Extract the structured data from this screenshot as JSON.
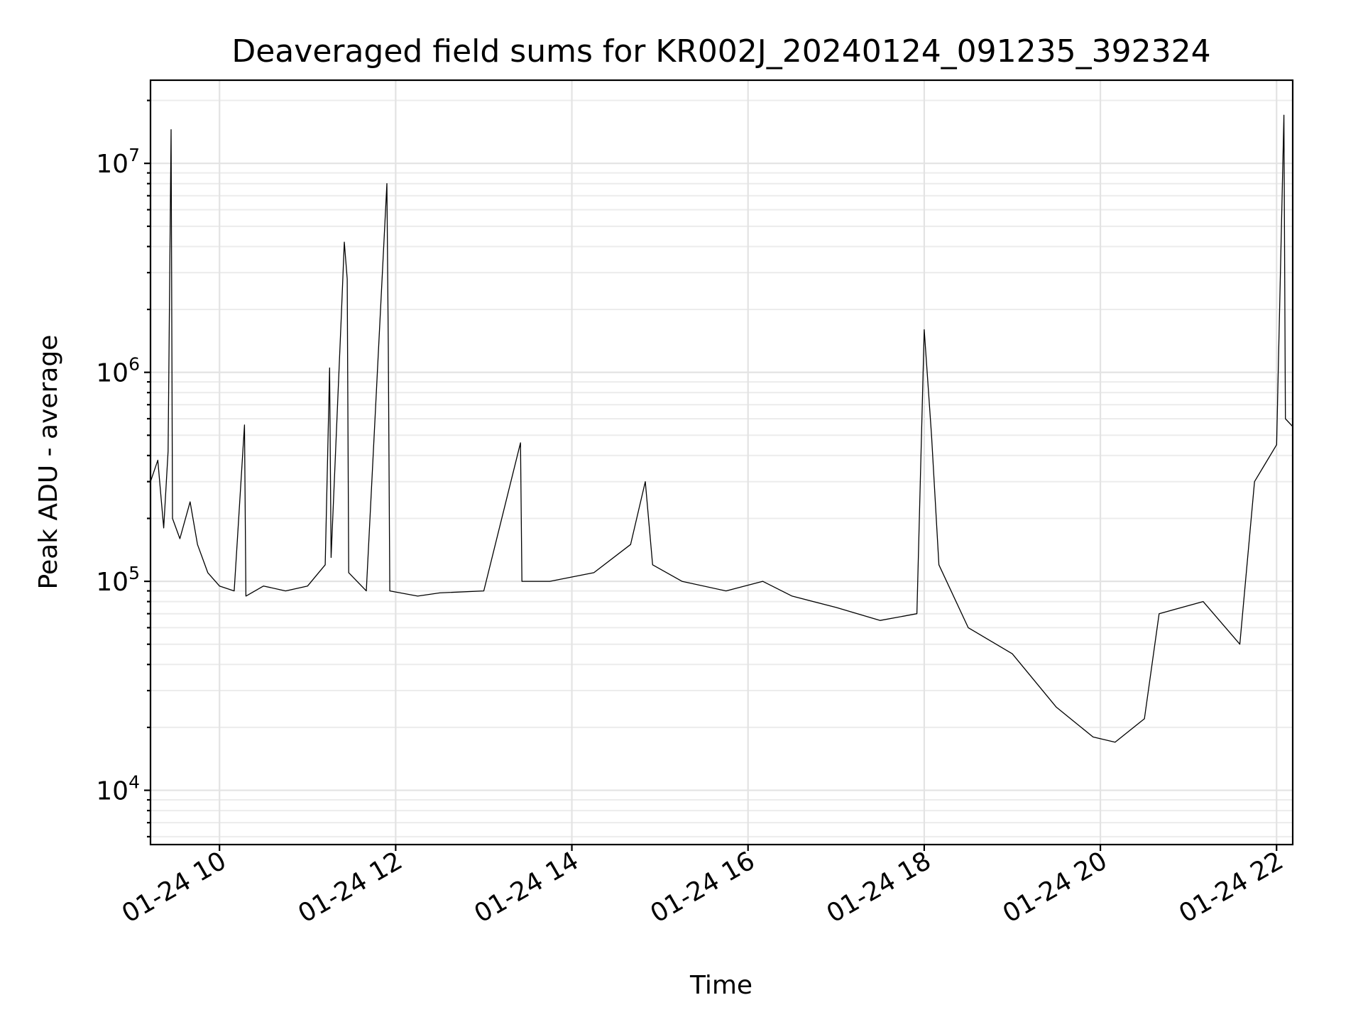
{
  "chart_data": {
    "type": "line",
    "title": "Deaveraged field sums for KR002J_20240124_091235_392324",
    "xlabel": "Time",
    "ylabel": "Peak ADU - average",
    "x_axis": {
      "type": "datetime",
      "range": [
        "2024-01-24 09:13",
        "2024-01-24 22:11"
      ],
      "ticks": [
        {
          "value": "2024-01-24 10:00",
          "label": "01-24 10"
        },
        {
          "value": "2024-01-24 12:00",
          "label": "01-24 12"
        },
        {
          "value": "2024-01-24 14:00",
          "label": "01-24 14"
        },
        {
          "value": "2024-01-24 16:00",
          "label": "01-24 16"
        },
        {
          "value": "2024-01-24 18:00",
          "label": "01-24 18"
        },
        {
          "value": "2024-01-24 20:00",
          "label": "01-24 20"
        },
        {
          "value": "2024-01-24 22:00",
          "label": "01-24 22"
        }
      ]
    },
    "y_axis": {
      "scale": "log",
      "range": [
        5500,
        25000000
      ],
      "ticks": [
        {
          "value": 10000,
          "base": "10",
          "exp": "4"
        },
        {
          "value": 100000,
          "base": "10",
          "exp": "5"
        },
        {
          "value": 1000000,
          "base": "10",
          "exp": "6"
        },
        {
          "value": 10000000,
          "base": "10",
          "exp": "7"
        }
      ]
    },
    "grid": true,
    "series": [
      {
        "color": "#000000",
        "points": [
          [
            "2024-01-24 09:13",
            300000
          ],
          [
            "2024-01-24 09:18",
            380000
          ],
          [
            "2024-01-24 09:22",
            180000
          ],
          [
            "2024-01-24 09:25",
            420000
          ],
          [
            "2024-01-24 09:27",
            14500000
          ],
          [
            "2024-01-24 09:28",
            200000
          ],
          [
            "2024-01-24 09:33",
            160000
          ],
          [
            "2024-01-24 09:40",
            240000
          ],
          [
            "2024-01-24 09:45",
            150000
          ],
          [
            "2024-01-24 09:52",
            110000
          ],
          [
            "2024-01-24 10:00",
            95000
          ],
          [
            "2024-01-24 10:10",
            90000
          ],
          [
            "2024-01-24 10:17",
            560000
          ],
          [
            "2024-01-24 10:18",
            85000
          ],
          [
            "2024-01-24 10:30",
            95000
          ],
          [
            "2024-01-24 10:45",
            90000
          ],
          [
            "2024-01-24 11:00",
            95000
          ],
          [
            "2024-01-24 11:12",
            120000
          ],
          [
            "2024-01-24 11:15",
            1050000
          ],
          [
            "2024-01-24 11:16",
            130000
          ],
          [
            "2024-01-24 11:23",
            1900000
          ],
          [
            "2024-01-24 11:25",
            4200000
          ],
          [
            "2024-01-24 11:27",
            2800000
          ],
          [
            "2024-01-24 11:28",
            110000
          ],
          [
            "2024-01-24 11:40",
            90000
          ],
          [
            "2024-01-24 11:54",
            8000000
          ],
          [
            "2024-01-24 11:55",
            1300000
          ],
          [
            "2024-01-24 11:56",
            90000
          ],
          [
            "2024-01-24 12:15",
            85000
          ],
          [
            "2024-01-24 12:30",
            88000
          ],
          [
            "2024-01-24 13:00",
            90000
          ],
          [
            "2024-01-24 13:25",
            460000
          ],
          [
            "2024-01-24 13:26",
            100000
          ],
          [
            "2024-01-24 13:45",
            100000
          ],
          [
            "2024-01-24 14:15",
            110000
          ],
          [
            "2024-01-24 14:40",
            150000
          ],
          [
            "2024-01-24 14:50",
            300000
          ],
          [
            "2024-01-24 14:55",
            120000
          ],
          [
            "2024-01-24 15:15",
            100000
          ],
          [
            "2024-01-24 15:45",
            90000
          ],
          [
            "2024-01-24 16:10",
            100000
          ],
          [
            "2024-01-24 16:30",
            85000
          ],
          [
            "2024-01-24 17:00",
            75000
          ],
          [
            "2024-01-24 17:30",
            65000
          ],
          [
            "2024-01-24 17:55",
            70000
          ],
          [
            "2024-01-24 18:00",
            1600000
          ],
          [
            "2024-01-24 18:05",
            500000
          ],
          [
            "2024-01-24 18:10",
            120000
          ],
          [
            "2024-01-24 18:30",
            60000
          ],
          [
            "2024-01-24 19:00",
            45000
          ],
          [
            "2024-01-24 19:30",
            25000
          ],
          [
            "2024-01-24 19:55",
            18000
          ],
          [
            "2024-01-24 20:10",
            17000
          ],
          [
            "2024-01-24 20:30",
            22000
          ],
          [
            "2024-01-24 20:40",
            70000
          ],
          [
            "2024-01-24 21:10",
            80000
          ],
          [
            "2024-01-24 21:35",
            50000
          ],
          [
            "2024-01-24 21:45",
            300000
          ],
          [
            "2024-01-24 22:00",
            450000
          ],
          [
            "2024-01-24 22:05",
            17000000
          ],
          [
            "2024-01-24 22:06",
            600000
          ],
          [
            "2024-01-24 22:11",
            550000
          ]
        ]
      }
    ]
  }
}
